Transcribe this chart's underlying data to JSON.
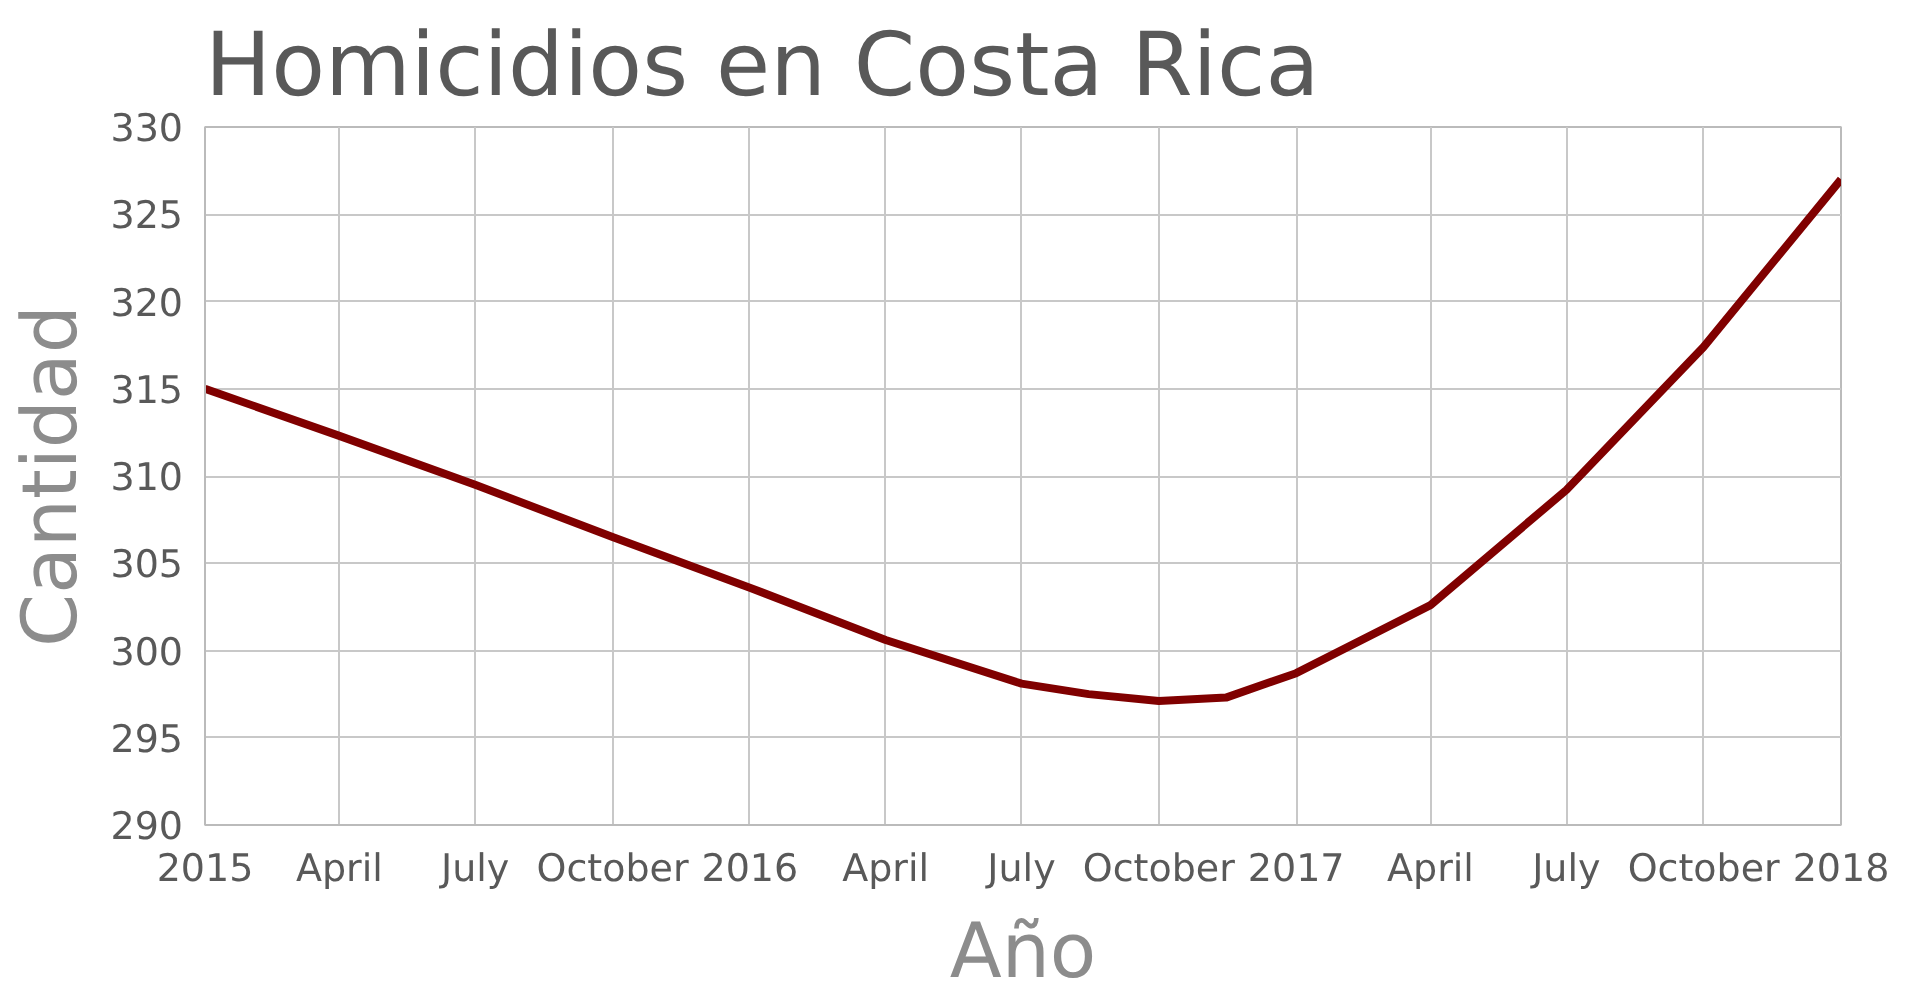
{
  "chart_data": {
    "type": "line",
    "title": "Homicidios en Costa Rica",
    "xlabel": "Año",
    "ylabel": "Cantidad",
    "x": [
      "2015-01-01",
      "2015-04-01",
      "2015-07-01",
      "2015-10-01",
      "2016-01-01",
      "2016-04-01",
      "2016-07-01",
      "2016-08-15",
      "2016-10-01",
      "2016-11-15",
      "2017-01-01",
      "2017-04-01",
      "2017-07-01",
      "2017-10-01",
      "2018-01-01"
    ],
    "series": [
      {
        "color": "#800000",
        "values": [
          315,
          312.3,
          309.5,
          306.5,
          303.6,
          300.6,
          298.1,
          297.5,
          297.1,
          297.3,
          298.7,
          302.6,
          309.2,
          317.4,
          327
        ]
      }
    ],
    "xlim": [
      "2015-01-01",
      "2018-01-01"
    ],
    "xticks": [
      {
        "value": "2015-01-01",
        "label": "2015"
      },
      {
        "value": "2015-04-01",
        "label": "April"
      },
      {
        "value": "2015-07-01",
        "label": "July"
      },
      {
        "value": "2015-10-01",
        "label": "October"
      },
      {
        "value": "2016-01-01",
        "label": "2016"
      },
      {
        "value": "2016-04-01",
        "label": "April"
      },
      {
        "value": "2016-07-01",
        "label": "July"
      },
      {
        "value": "2016-10-01",
        "label": "October"
      },
      {
        "value": "2017-01-01",
        "label": "2017"
      },
      {
        "value": "2017-04-01",
        "label": "April"
      },
      {
        "value": "2017-07-01",
        "label": "July"
      },
      {
        "value": "2017-10-01",
        "label": "October"
      },
      {
        "value": "2018-01-01",
        "label": "2018"
      }
    ],
    "ylim": [
      290,
      330
    ],
    "yticks": [
      290,
      295,
      300,
      305,
      310,
      315,
      320,
      325,
      330
    ],
    "grid": true,
    "line_style": "solid"
  }
}
